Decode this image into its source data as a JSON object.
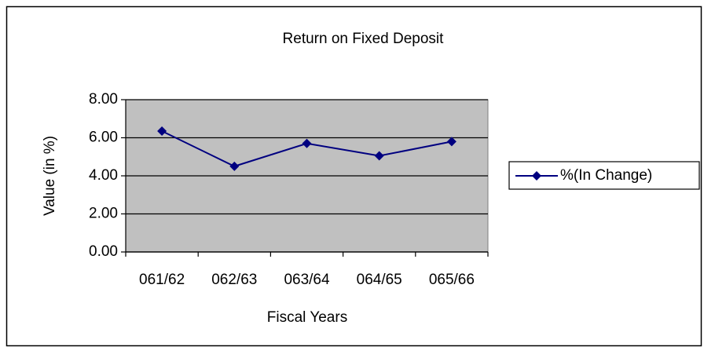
{
  "chart_data": {
    "type": "line",
    "title": "Return on Fixed Deposit",
    "x_label": "Fiscal Years",
    "y_label": "Value (in %)",
    "categories": [
      "061/62",
      "062/63",
      "063/64",
      "064/65",
      "065/66"
    ],
    "series": [
      {
        "name": "%(In Change)",
        "color": "#000080",
        "values": [
          6.35,
          4.5,
          5.7,
          5.05,
          5.8
        ]
      }
    ],
    "ylim": [
      0,
      8
    ],
    "yticks": [
      {
        "value": 0,
        "label": "0.00"
      },
      {
        "value": 2,
        "label": "2.00"
      },
      {
        "value": 4,
        "label": "4.00"
      },
      {
        "value": 6,
        "label": "6.00"
      },
      {
        "value": 8,
        "label": "8.00"
      }
    ],
    "grid": true,
    "plot_background": "#c0c0c0",
    "legend": "right"
  }
}
